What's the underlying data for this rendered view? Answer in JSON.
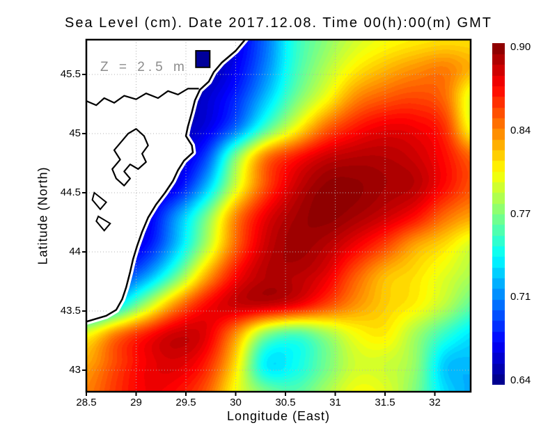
{
  "chart_data": {
    "type": "heatmap",
    "title": "Sea Level (cm). Date 2017.12.08. Time 00(h):00(m) GMT",
    "annotation": "Z = 2.5 m",
    "xlabel": "Longitude (East)",
    "ylabel": "Latitude (North)",
    "x_ticks": [
      "28.5",
      "29",
      "29.5",
      "30",
      "30.5",
      "31",
      "31.5",
      "32"
    ],
    "y_ticks": [
      "45.5",
      "45",
      "44.5",
      "44",
      "43.5",
      "43"
    ],
    "lon_range": [
      28.5,
      32.36
    ],
    "lat_range": [
      42.818,
      45.794
    ],
    "colorbar": {
      "ticks": [
        "0.90",
        "0.84",
        "0.77",
        "0.71",
        "0.64"
      ],
      "vmin": 0.64,
      "vmax": 0.9,
      "colormap": "jet",
      "bands": 32
    },
    "colors": {
      "background": "#ffffff",
      "land": "#ffffff",
      "coastline": "#000000",
      "gridlines": "#b3b3b3",
      "frame": "#000000",
      "annotation": "#8c8c8c",
      "bay_fill": "#00009a"
    },
    "grid_values": {
      "lon_start": 28.5,
      "lon_step": 0.3,
      "lat_start": 45.8,
      "lat_step": -0.25,
      "values": [
        [
          0.655,
          0.655,
          0.655,
          0.655,
          0.655,
          0.665,
          0.7,
          0.748,
          0.772,
          0.79,
          0.8,
          0.806,
          0.81,
          0.81
        ],
        [
          0.65,
          0.65,
          0.65,
          0.65,
          0.652,
          0.67,
          0.706,
          0.752,
          0.782,
          0.806,
          0.82,
          0.83,
          0.835,
          0.82
        ],
        [
          0.65,
          0.65,
          0.65,
          0.65,
          0.66,
          0.682,
          0.722,
          0.766,
          0.8,
          0.832,
          0.845,
          0.85,
          0.84,
          0.79
        ],
        [
          0.655,
          0.655,
          0.655,
          0.655,
          0.665,
          0.7,
          0.755,
          0.8,
          0.84,
          0.862,
          0.872,
          0.87,
          0.855,
          0.795
        ],
        [
          0.66,
          0.66,
          0.66,
          0.66,
          0.69,
          0.77,
          0.835,
          0.862,
          0.88,
          0.886,
          0.886,
          0.88,
          0.865,
          0.84
        ],
        [
          0.66,
          0.66,
          0.66,
          0.67,
          0.72,
          0.792,
          0.848,
          0.88,
          0.895,
          0.895,
          0.89,
          0.885,
          0.865,
          0.845
        ],
        [
          0.66,
          0.66,
          0.665,
          0.71,
          0.766,
          0.832,
          0.872,
          0.89,
          0.896,
          0.89,
          0.88,
          0.865,
          0.84,
          0.825
        ],
        [
          0.66,
          0.66,
          0.675,
          0.722,
          0.782,
          0.842,
          0.88,
          0.892,
          0.886,
          0.87,
          0.85,
          0.825,
          0.81,
          0.79
        ],
        [
          0.67,
          0.682,
          0.712,
          0.762,
          0.822,
          0.866,
          0.886,
          0.886,
          0.874,
          0.845,
          0.82,
          0.81,
          0.795,
          0.78
        ],
        [
          0.7,
          0.732,
          0.782,
          0.832,
          0.866,
          0.88,
          0.88,
          0.87,
          0.85,
          0.83,
          0.815,
          0.805,
          0.785,
          0.76
        ],
        [
          0.8,
          0.836,
          0.862,
          0.88,
          0.874,
          0.83,
          0.772,
          0.756,
          0.776,
          0.8,
          0.806,
          0.78,
          0.75,
          0.73
        ],
        [
          0.825,
          0.85,
          0.87,
          0.876,
          0.86,
          0.81,
          0.735,
          0.74,
          0.766,
          0.79,
          0.79,
          0.775,
          0.725,
          0.72
        ],
        [
          0.835,
          0.855,
          0.87,
          0.865,
          0.845,
          0.8,
          0.77,
          0.76,
          0.78,
          0.8,
          0.795,
          0.77,
          0.73,
          0.715
        ]
      ]
    },
    "coastline": [
      [
        30.1,
        45.8
      ],
      [
        30.0,
        45.7
      ],
      [
        29.86,
        45.6
      ],
      [
        29.78,
        45.52
      ],
      [
        29.73,
        45.44
      ],
      [
        29.64,
        45.37
      ],
      [
        29.59,
        45.28
      ],
      [
        29.56,
        45.18
      ],
      [
        29.52,
        45.06
      ],
      [
        29.5,
        44.98
      ],
      [
        29.56,
        44.9
      ],
      [
        29.57,
        44.84
      ],
      [
        29.48,
        44.77
      ],
      [
        29.42,
        44.69
      ],
      [
        29.37,
        44.6
      ],
      [
        29.29,
        44.5
      ],
      [
        29.2,
        44.4
      ],
      [
        29.12,
        44.29
      ],
      [
        29.06,
        44.17
      ],
      [
        29.01,
        44.05
      ],
      [
        28.97,
        43.94
      ],
      [
        28.94,
        43.83
      ],
      [
        28.9,
        43.7
      ],
      [
        28.86,
        43.6
      ],
      [
        28.8,
        43.51
      ],
      [
        28.7,
        43.46
      ],
      [
        28.58,
        43.43
      ],
      [
        28.46,
        43.4
      ]
    ],
    "river": [
      [
        28.46,
        45.29
      ],
      [
        28.6,
        45.24
      ],
      [
        28.68,
        45.3
      ],
      [
        28.78,
        45.26
      ],
      [
        28.88,
        45.32
      ],
      [
        29.0,
        45.29
      ],
      [
        29.1,
        45.34
      ],
      [
        29.22,
        45.3
      ],
      [
        29.32,
        45.36
      ],
      [
        29.42,
        45.33
      ],
      [
        29.52,
        45.38
      ],
      [
        29.63,
        45.38
      ]
    ],
    "lagoon": [
      [
        29.0,
        45.04
      ],
      [
        29.08,
        44.98
      ],
      [
        29.12,
        44.9
      ],
      [
        29.06,
        44.83
      ],
      [
        29.1,
        44.76
      ],
      [
        29.02,
        44.7
      ],
      [
        28.94,
        44.74
      ],
      [
        28.88,
        44.68
      ],
      [
        28.94,
        44.62
      ],
      [
        28.88,
        44.56
      ],
      [
        28.8,
        44.62
      ],
      [
        28.76,
        44.7
      ],
      [
        28.84,
        44.78
      ],
      [
        28.78,
        44.86
      ],
      [
        28.86,
        44.94
      ],
      [
        28.92,
        45.0
      ],
      [
        29.0,
        45.04
      ]
    ],
    "islets": [
      [
        [
          28.58,
          44.5
        ],
        [
          28.7,
          44.42
        ],
        [
          28.64,
          44.36
        ],
        [
          28.56,
          44.44
        ],
        [
          28.58,
          44.5
        ]
      ],
      [
        [
          28.62,
          44.3
        ],
        [
          28.74,
          44.24
        ],
        [
          28.68,
          44.18
        ],
        [
          28.6,
          44.26
        ],
        [
          28.62,
          44.3
        ]
      ]
    ],
    "bay_cell": {
      "lon": [
        29.6,
        29.74
      ],
      "lat": [
        45.56,
        45.7
      ]
    }
  }
}
